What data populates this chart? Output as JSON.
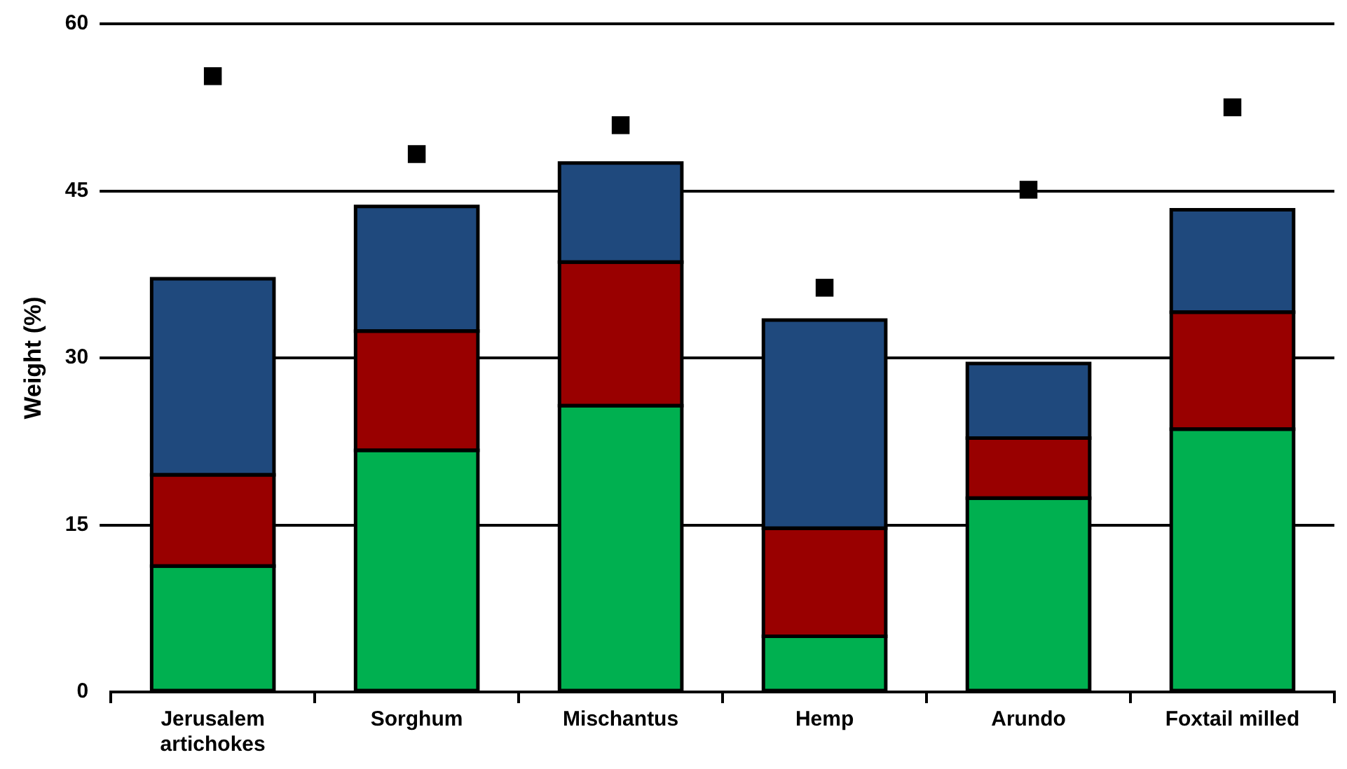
{
  "chart_data": {
    "type": "bar",
    "ylabel": "Weight (%)",
    "stacked": true,
    "grid": "y",
    "legend": false,
    "categories": [
      "Jerusalem\nartichokes",
      "Sorghum",
      "Mischantus",
      "Hemp",
      "Arundo",
      "Foxtail milled"
    ],
    "series": [
      {
        "color": "#00b050",
        "values": [
          11.3,
          21.7,
          25.7,
          5.0,
          17.4,
          23.6
        ]
      },
      {
        "color": "#990000",
        "values": [
          8.2,
          10.7,
          12.9,
          9.7,
          5.4,
          10.5
        ]
      },
      {
        "color": "#1f497d",
        "values": [
          17.6,
          11.2,
          8.9,
          18.7,
          6.7,
          9.2
        ]
      },
      {
        "type": "scatter",
        "color": "#000000",
        "x": [
          "Jerusalem\nartichokes",
          "Sorghum",
          "Mischantus",
          "Hemp",
          "Arundo",
          "Foxtail milled"
        ],
        "values": [
          55.3,
          48.3,
          50.9,
          36.3,
          45.1,
          52.5
        ]
      }
    ],
    "marker": "square",
    "ylim": [
      0,
      60
    ],
    "yticks": [
      0,
      15,
      30,
      45,
      60
    ]
  }
}
